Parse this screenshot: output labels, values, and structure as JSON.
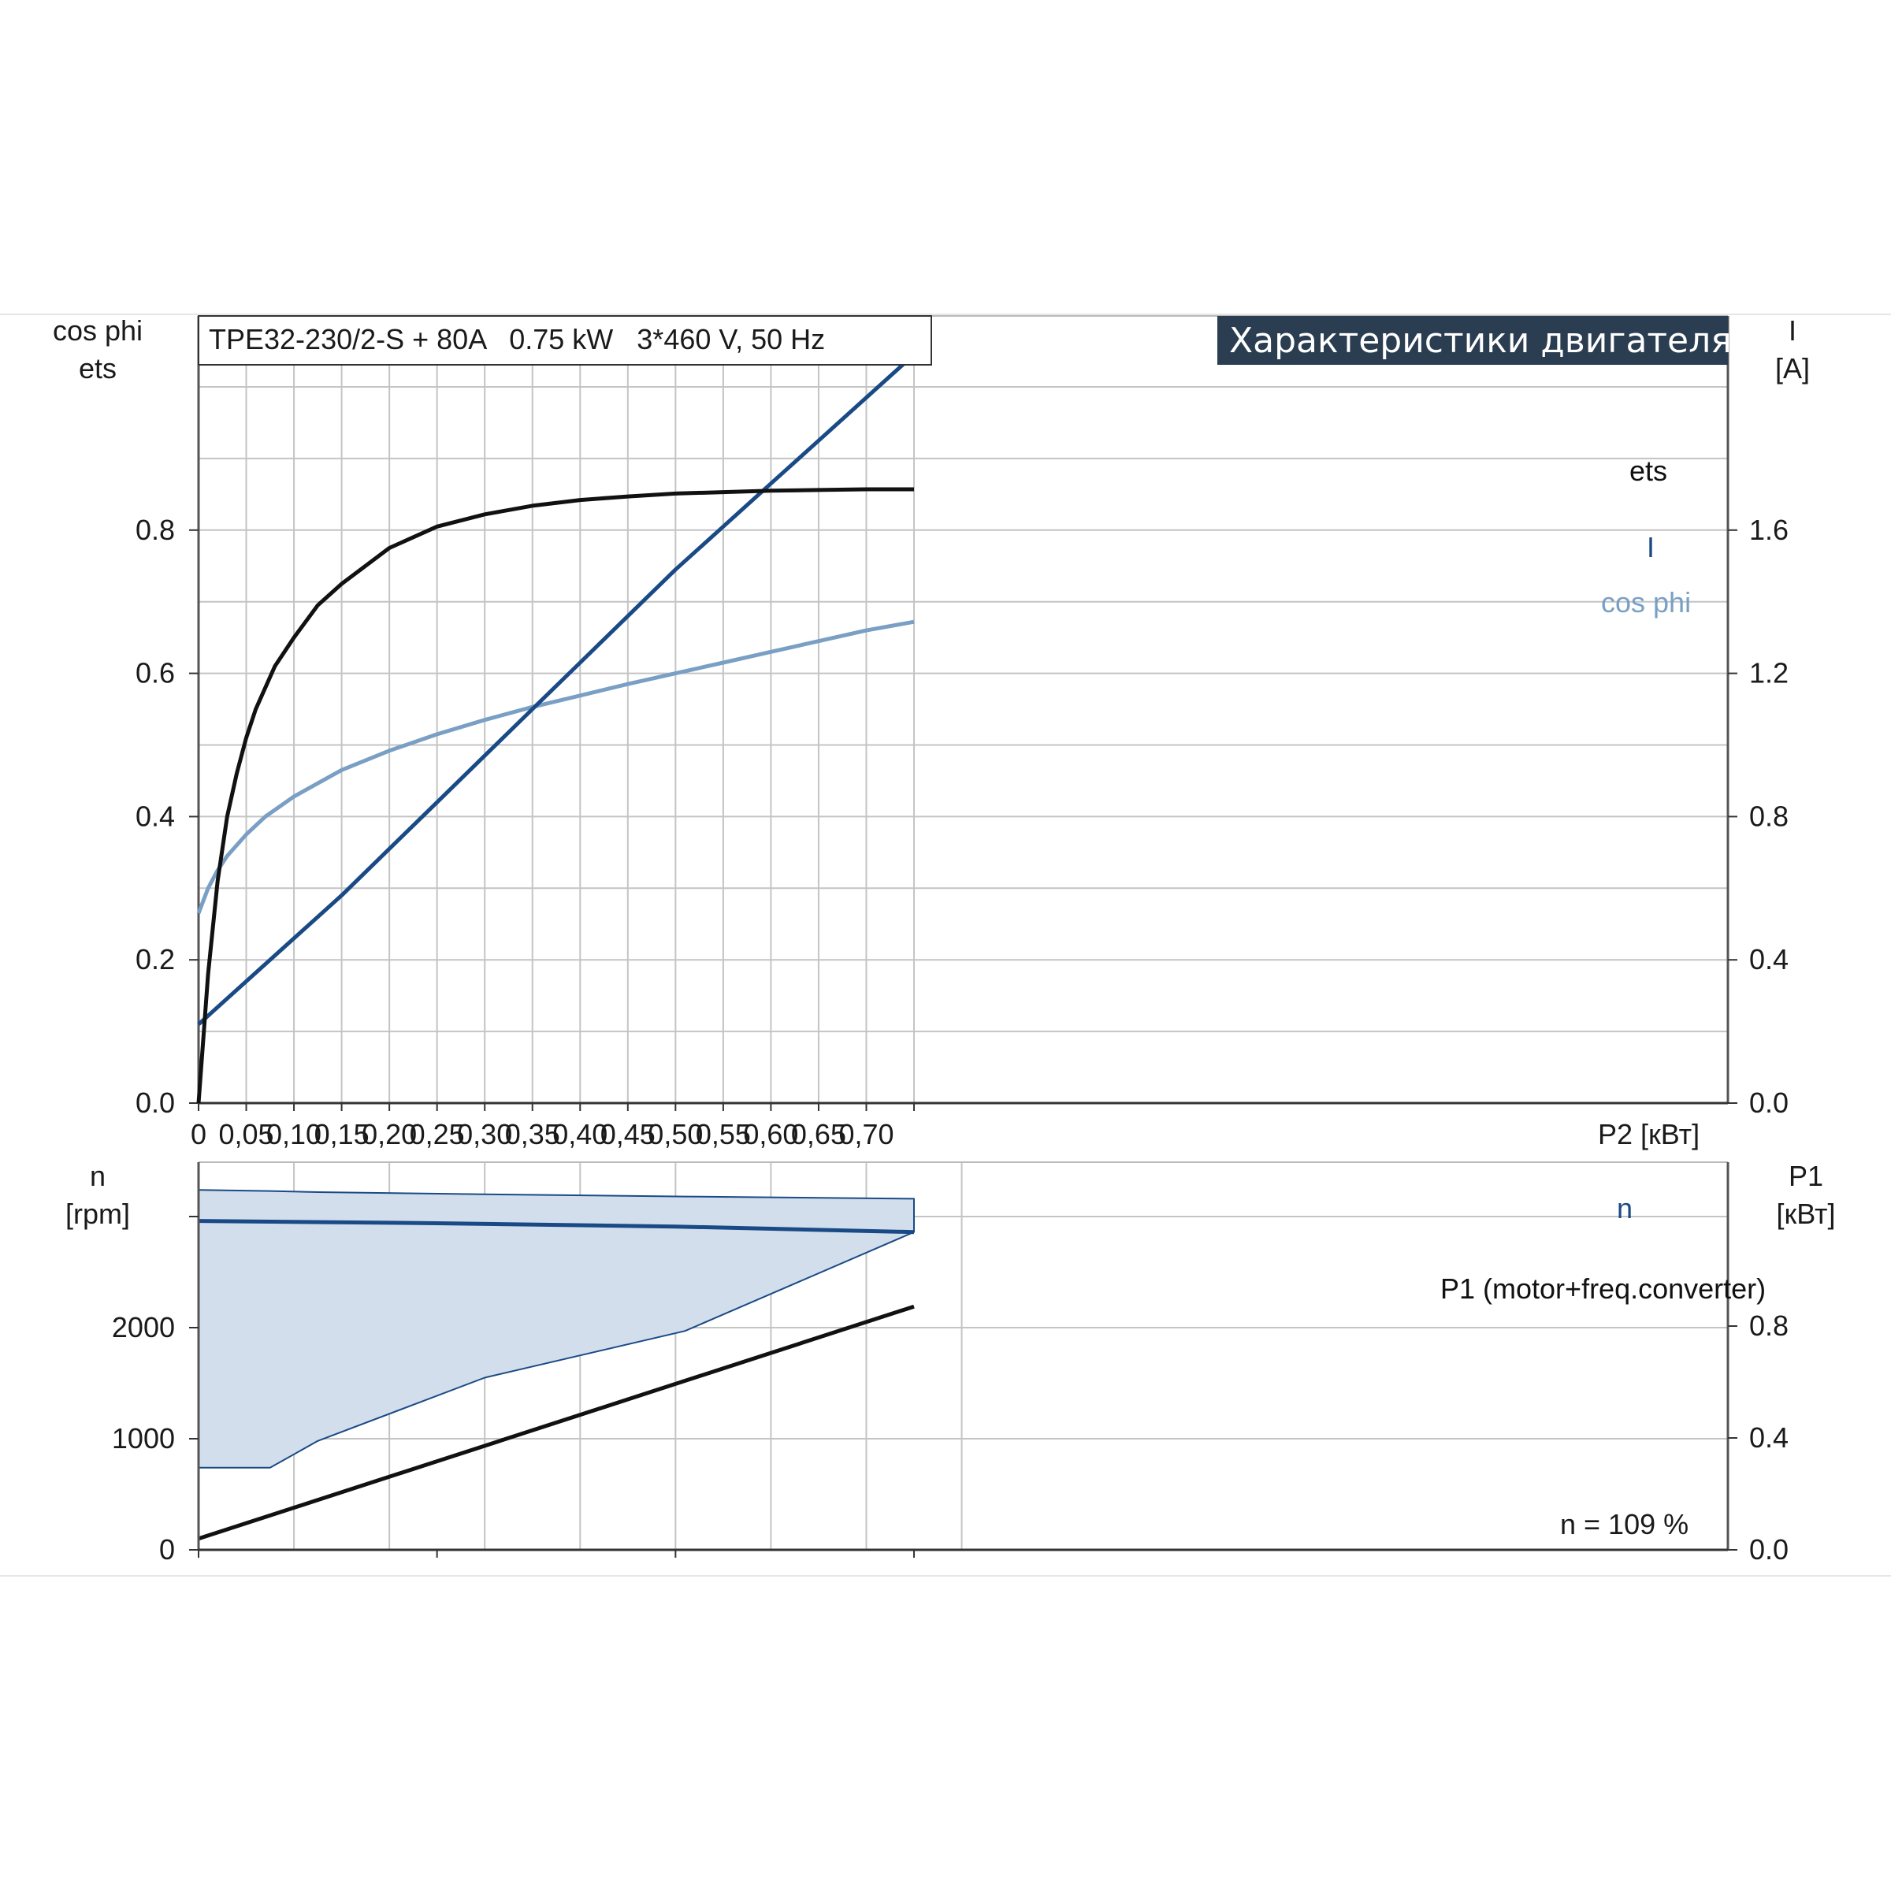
{
  "header": {
    "model": "TPE32-230/2-S + 80A   0.75 kW   3*460 V, 50 Hz",
    "banner": "Характеристики двигателя"
  },
  "colors": {
    "ets": "#111111",
    "current": "#1a4a86",
    "cosphi": "#7a9fc4",
    "speed": "#1a4a86",
    "speed_band_fill": "#d2deec",
    "speed_band_edge": "#1a4a86",
    "p1": "#111111",
    "banner_bg": "#2b3d50"
  },
  "chart_data": [
    {
      "type": "line",
      "title": "Характеристики двигателя",
      "xlabel": "P2 [кВт]",
      "x_ticks": [
        "0",
        "0,05",
        "0,10",
        "0,15",
        "0,20",
        "0,25",
        "0,30",
        "0,35",
        "0,40",
        "0,45",
        "0,50",
        "0,55",
        "0,60",
        "0,65",
        "0,70",
        "P2 [кВт]"
      ],
      "xlim": [
        0,
        0.8
      ],
      "y_left_label": [
        "cos phi",
        "ets"
      ],
      "y_left_ticks": [
        "0.0",
        "0.2",
        "0.4",
        "0.6",
        "0.8"
      ],
      "ylim_left": [
        0,
        1.1
      ],
      "y_right_label": [
        "I",
        "[A]"
      ],
      "y_right_ticks": [
        "0.0",
        "0.4",
        "0.8",
        "1.2",
        "1.6"
      ],
      "ylim_right": [
        0,
        2.2
      ],
      "grid": true,
      "series": [
        {
          "name": "ets",
          "axis": "left",
          "x": [
            0,
            0.01,
            0.02,
            0.03,
            0.04,
            0.05,
            0.06,
            0.08,
            0.1,
            0.125,
            0.15,
            0.2,
            0.25,
            0.3,
            0.35,
            0.4,
            0.45,
            0.5,
            0.55,
            0.6,
            0.65,
            0.7,
            0.75
          ],
          "y": [
            0,
            0.18,
            0.31,
            0.4,
            0.46,
            0.51,
            0.55,
            0.61,
            0.65,
            0.695,
            0.725,
            0.775,
            0.805,
            0.822,
            0.834,
            0.842,
            0.847,
            0.851,
            0.853,
            0.855,
            0.856,
            0.857,
            0.857
          ]
        },
        {
          "name": "I",
          "axis": "right",
          "x": [
            0,
            0.05,
            0.1,
            0.15,
            0.2,
            0.25,
            0.3,
            0.35,
            0.4,
            0.45,
            0.5,
            0.55,
            0.6,
            0.65,
            0.7,
            0.75
          ],
          "y": [
            0.22,
            0.34,
            0.46,
            0.58,
            0.71,
            0.84,
            0.97,
            1.1,
            1.23,
            1.36,
            1.49,
            1.61,
            1.73,
            1.85,
            1.97,
            2.09
          ]
        },
        {
          "name": "cos phi",
          "axis": "left",
          "x": [
            0,
            0.01,
            0.02,
            0.03,
            0.05,
            0.07,
            0.1,
            0.15,
            0.2,
            0.25,
            0.3,
            0.35,
            0.4,
            0.45,
            0.5,
            0.55,
            0.6,
            0.65,
            0.7,
            0.75
          ],
          "y": [
            0.265,
            0.3,
            0.325,
            0.345,
            0.375,
            0.4,
            0.428,
            0.465,
            0.492,
            0.515,
            0.535,
            0.553,
            0.569,
            0.585,
            0.6,
            0.615,
            0.63,
            0.645,
            0.66,
            0.672
          ]
        }
      ]
    },
    {
      "type": "area",
      "x_ticks": [],
      "xlim": [
        0,
        0.8
      ],
      "y_left_label": [
        "n",
        "[rpm]"
      ],
      "y_left_ticks": [
        "0",
        "1000",
        "2000"
      ],
      "ylim_left": [
        0,
        3100
      ],
      "y_right_label": [
        "P1",
        "[кВт]"
      ],
      "y_right_ticks": [
        "0.0",
        "0.4",
        "0.8"
      ],
      "ylim_right": [
        0,
        1.24
      ],
      "grid": true,
      "annotation": "n = 109 %",
      "series": [
        {
          "name": "n",
          "axis": "left",
          "kind": "band",
          "x": [
            0,
            0.075,
            0.125,
            0.3,
            0.51,
            0.75
          ],
          "upper": [
            3240,
            3230,
            3220,
            3200,
            3180,
            3160
          ],
          "lower": [
            740,
            740,
            980,
            1550,
            1970,
            2860
          ]
        },
        {
          "name": "n",
          "axis": "left",
          "kind": "line",
          "x": [
            0,
            0.25,
            0.5,
            0.75
          ],
          "y": [
            2960,
            2940,
            2910,
            2860
          ]
        },
        {
          "name": "P1 (motor+freq.converter)",
          "axis": "right",
          "kind": "line",
          "x": [
            0,
            0.75
          ],
          "y": [
            0.04,
            0.87
          ]
        }
      ]
    }
  ]
}
